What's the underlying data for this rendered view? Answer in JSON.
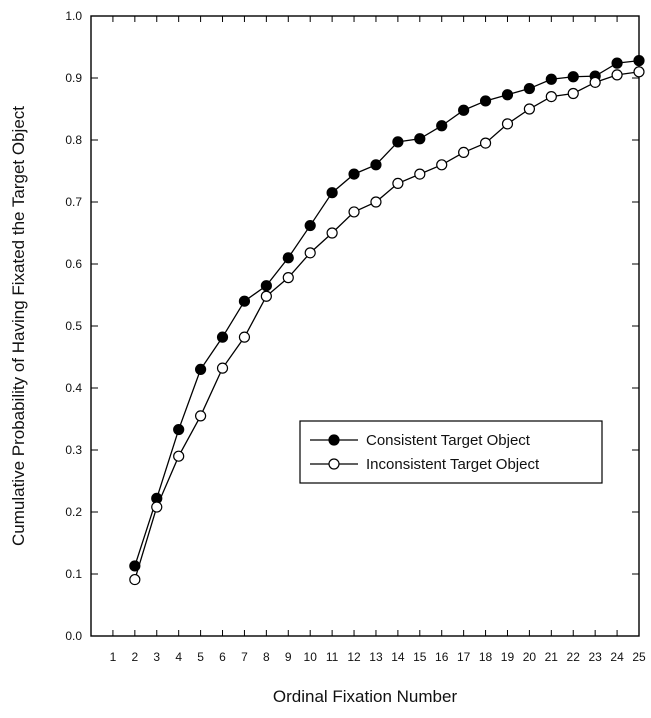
{
  "chart_data": {
    "type": "line",
    "title": "",
    "xlabel": "Ordinal Fixation Number",
    "ylabel": "Cumulative Probability of Having Fixated the Target Object",
    "xlim": [
      0,
      25
    ],
    "ylim": [
      0.0,
      1.0
    ],
    "x_ticks": [
      1,
      2,
      3,
      4,
      5,
      6,
      7,
      8,
      9,
      10,
      11,
      12,
      13,
      14,
      15,
      16,
      17,
      18,
      19,
      20,
      21,
      22,
      23,
      24,
      25
    ],
    "x_tick_labels": [
      "1",
      "2",
      "3",
      "4",
      "5",
      "6",
      "7",
      "8",
      "9",
      "10",
      "11",
      "12",
      "13",
      "14",
      "15",
      "16",
      "17",
      "18",
      "19",
      "20",
      "21",
      "22",
      "23",
      "24",
      "25"
    ],
    "y_ticks": [
      0.0,
      0.1,
      0.2,
      0.3,
      0.4,
      0.5,
      0.6,
      0.7,
      0.8,
      0.9,
      1.0
    ],
    "y_tick_labels": [
      "0.0",
      "0.1",
      "0.2",
      "0.3",
      "0.4",
      "0.5",
      "0.6",
      "0.7",
      "0.8",
      "0.9",
      "1.0"
    ],
    "grid": false,
    "legend_position": "center-right",
    "x": [
      2,
      3,
      4,
      5,
      6,
      7,
      8,
      9,
      10,
      11,
      12,
      13,
      14,
      15,
      16,
      17,
      18,
      19,
      20,
      21,
      22,
      23,
      24,
      25
    ],
    "series": [
      {
        "name": "Consistent Target Object",
        "marker": "filled-circle",
        "color": "#000000",
        "values": [
          0.113,
          0.222,
          0.333,
          0.43,
          0.482,
          0.54,
          0.565,
          0.61,
          0.662,
          0.715,
          0.745,
          0.76,
          0.797,
          0.802,
          0.823,
          0.848,
          0.863,
          0.873,
          0.883,
          0.898,
          0.902,
          0.903,
          0.924,
          0.928
        ]
      },
      {
        "name": "Inconsistent Target Object",
        "marker": "open-circle",
        "color": "#000000",
        "values": [
          0.091,
          0.208,
          0.29,
          0.355,
          0.432,
          0.482,
          0.548,
          0.578,
          0.618,
          0.65,
          0.684,
          0.7,
          0.73,
          0.745,
          0.76,
          0.78,
          0.795,
          0.826,
          0.85,
          0.87,
          0.875,
          0.893,
          0.905,
          0.91
        ]
      }
    ]
  }
}
